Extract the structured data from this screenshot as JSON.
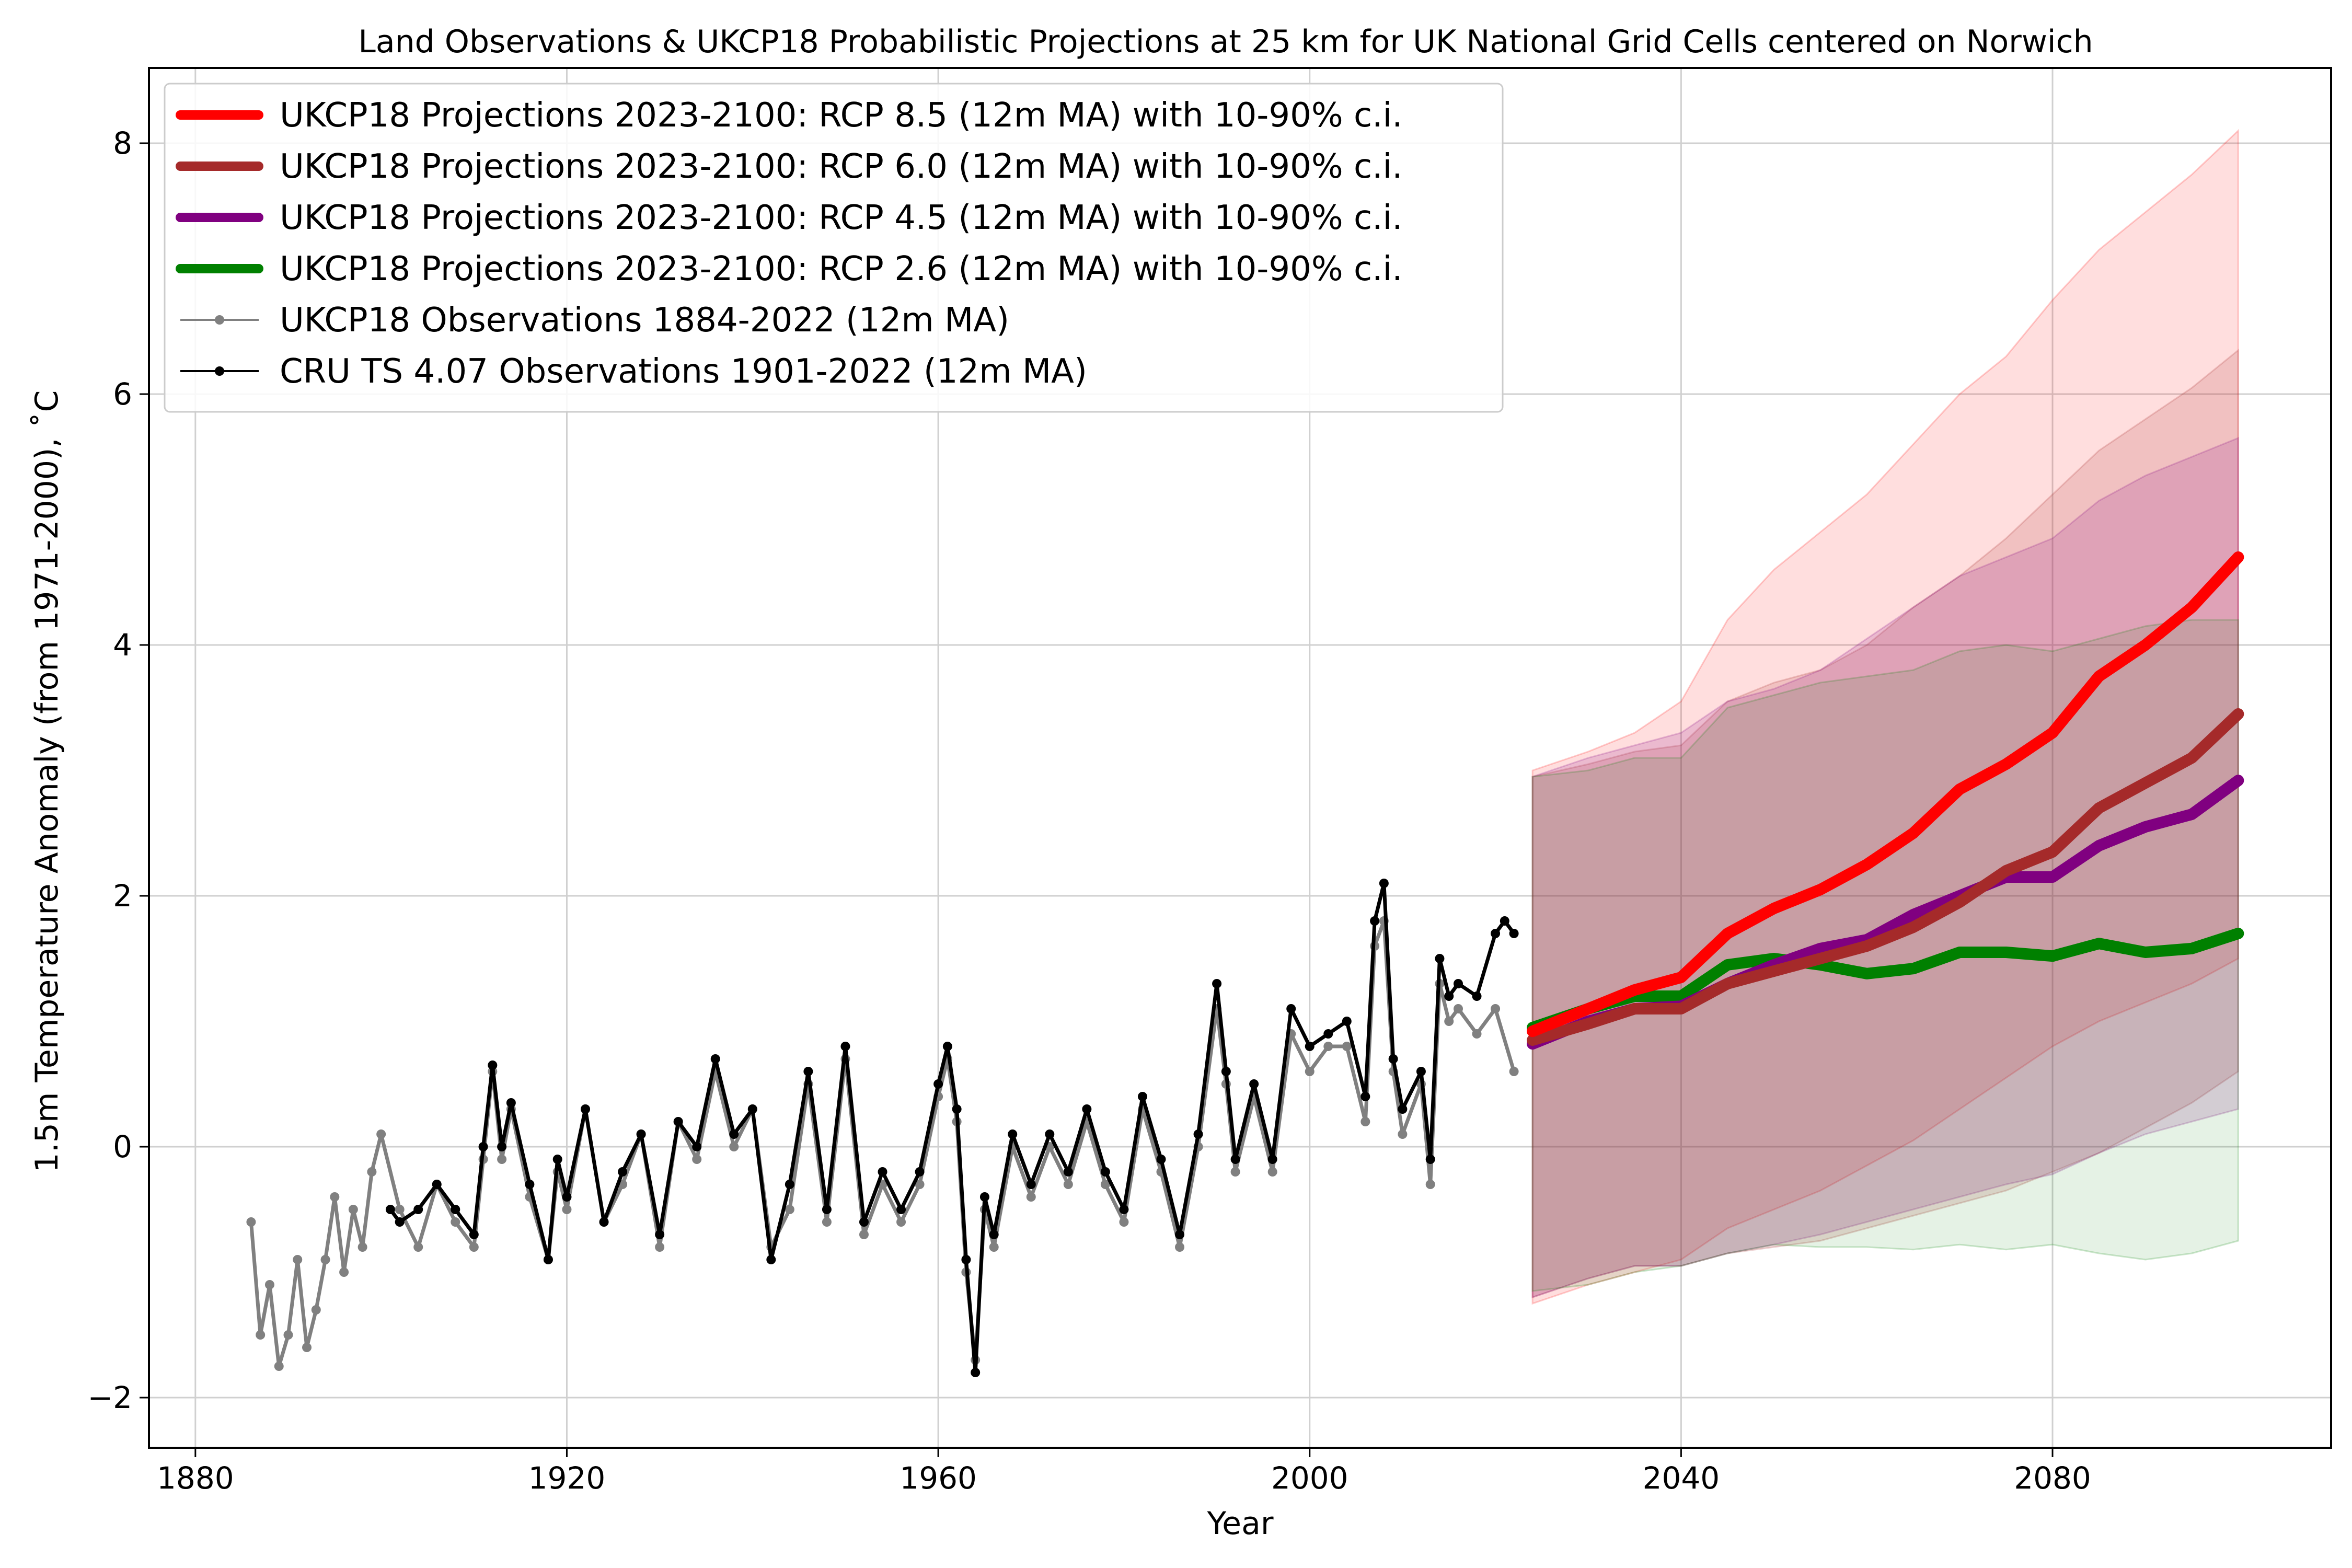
{
  "chart_data": {
    "type": "line",
    "title": "Land Observations & UKCP18 Probabilistic Projections at 25 km for UK National Grid Cells centered on Norwich",
    "xlabel": "Year",
    "ylabel": "1.5m Temperature Anomaly (from 1971-2000), ˚C",
    "xlim": [
      1875,
      2110
    ],
    "ylim": [
      -2.4,
      8.6
    ],
    "x_ticks": [
      1880,
      1920,
      1960,
      2000,
      2040,
      2080
    ],
    "x_tick_labels": [
      "1880",
      "1920",
      "1960",
      "2000",
      "2040",
      "2080"
    ],
    "y_ticks": [
      -2,
      0,
      2,
      4,
      6,
      8
    ],
    "y_tick_labels": [
      "−2",
      "0",
      "2",
      "4",
      "6",
      "8"
    ],
    "grid": true,
    "legend_position": "top-left",
    "series": [
      {
        "name": "UKCP18 Projections 2023-2100: RCP 8.5 (12m MA) with 10-90% c.i.",
        "color": "#ff0000",
        "kind": "projection",
        "x": [
          2024,
          2030,
          2035,
          2040,
          2045,
          2050,
          2055,
          2060,
          2065,
          2070,
          2075,
          2080,
          2085,
          2090,
          2095,
          2100
        ],
        "y": [
          0.92,
          1.1,
          1.25,
          1.35,
          1.7,
          1.9,
          2.05,
          2.25,
          2.5,
          2.85,
          3.05,
          3.3,
          3.75,
          4.0,
          4.3,
          4.7
        ],
        "upper": [
          3.0,
          3.15,
          3.3,
          3.55,
          4.2,
          4.6,
          4.9,
          5.2,
          5.6,
          6.0,
          6.3,
          6.75,
          7.15,
          7.45,
          7.75,
          8.1
        ],
        "lower": [
          -1.25,
          -1.1,
          -1.0,
          -0.9,
          -0.65,
          -0.5,
          -0.35,
          -0.15,
          0.05,
          0.3,
          0.55,
          0.8,
          1.0,
          1.15,
          1.3,
          1.5
        ]
      },
      {
        "name": "UKCP18 Projections 2023-2100: RCP 6.0 (12m MA) with 10-90% c.i.",
        "color": "#a52a2a",
        "kind": "projection",
        "x": [
          2024,
          2030,
          2035,
          2040,
          2045,
          2050,
          2055,
          2060,
          2065,
          2070,
          2075,
          2080,
          2085,
          2090,
          2095,
          2100
        ],
        "y": [
          0.85,
          0.98,
          1.1,
          1.1,
          1.3,
          1.4,
          1.5,
          1.6,
          1.75,
          1.95,
          2.2,
          2.35,
          2.7,
          2.9,
          3.1,
          3.45
        ],
        "upper": [
          2.95,
          3.05,
          3.15,
          3.2,
          3.55,
          3.7,
          3.8,
          4.0,
          4.3,
          4.55,
          4.85,
          5.2,
          5.55,
          5.8,
          6.05,
          6.35
        ],
        "lower": [
          -1.2,
          -1.05,
          -0.95,
          -0.95,
          -0.85,
          -0.8,
          -0.75,
          -0.65,
          -0.55,
          -0.45,
          -0.35,
          -0.2,
          -0.05,
          0.15,
          0.35,
          0.6
        ]
      },
      {
        "name": "UKCP18 Projections 2023-2100: RCP 4.5 (12m MA) with 10-90% c.i.",
        "color": "#800080",
        "kind": "projection",
        "x": [
          2024,
          2030,
          2035,
          2040,
          2045,
          2050,
          2055,
          2060,
          2065,
          2070,
          2075,
          2080,
          2085,
          2090,
          2095,
          2100
        ],
        "y": [
          0.82,
          1.0,
          1.1,
          1.12,
          1.3,
          1.45,
          1.58,
          1.65,
          1.85,
          2.0,
          2.15,
          2.15,
          2.4,
          2.55,
          2.65,
          2.92
        ],
        "upper": [
          2.95,
          3.1,
          3.2,
          3.3,
          3.55,
          3.65,
          3.8,
          4.05,
          4.3,
          4.55,
          4.7,
          4.85,
          5.15,
          5.35,
          5.5,
          5.65
        ],
        "lower": [
          -1.2,
          -1.05,
          -0.95,
          -0.95,
          -0.85,
          -0.78,
          -0.7,
          -0.6,
          -0.5,
          -0.4,
          -0.3,
          -0.22,
          -0.05,
          0.1,
          0.2,
          0.3
        ]
      },
      {
        "name": "UKCP18 Projections 2023-2100: RCP 2.6 (12m MA) with 10-90% c.i.",
        "color": "#008000",
        "kind": "projection",
        "x": [
          2024,
          2030,
          2035,
          2040,
          2045,
          2050,
          2055,
          2060,
          2065,
          2070,
          2075,
          2080,
          2085,
          2090,
          2095,
          2100
        ],
        "y": [
          0.95,
          1.1,
          1.2,
          1.2,
          1.45,
          1.5,
          1.45,
          1.38,
          1.42,
          1.55,
          1.55,
          1.52,
          1.62,
          1.55,
          1.58,
          1.7
        ],
        "upper": [
          2.95,
          3.0,
          3.1,
          3.1,
          3.5,
          3.6,
          3.7,
          3.75,
          3.8,
          3.95,
          4.0,
          3.95,
          4.05,
          4.15,
          4.2,
          4.2
        ],
        "lower": [
          -1.15,
          -1.1,
          -1.0,
          -0.95,
          -0.85,
          -0.78,
          -0.8,
          -0.8,
          -0.82,
          -0.78,
          -0.82,
          -0.78,
          -0.85,
          -0.9,
          -0.85,
          -0.75
        ]
      },
      {
        "name": "UKCP18 Observations 1884-2022 (12m MA)",
        "color": "#808080",
        "kind": "observation",
        "x": [
          1886,
          1887,
          1888,
          1889,
          1890,
          1891,
          1892,
          1893,
          1894,
          1895,
          1896,
          1897,
          1898,
          1899,
          1900,
          1902,
          1904,
          1906,
          1908,
          1910,
          1911,
          1912,
          1913,
          1914,
          1916,
          1918,
          1919,
          1920,
          1922,
          1924,
          1926,
          1928,
          1930,
          1932,
          1934,
          1936,
          1938,
          1940,
          1942,
          1944,
          1946,
          1948,
          1950,
          1952,
          1954,
          1956,
          1958,
          1960,
          1961,
          1962,
          1963,
          1964,
          1965,
          1966,
          1968,
          1970,
          1972,
          1974,
          1976,
          1978,
          1980,
          1982,
          1984,
          1986,
          1988,
          1990,
          1991,
          1992,
          1994,
          1996,
          1998,
          2000,
          2002,
          2004,
          2006,
          2007,
          2008,
          2009,
          2010,
          2012,
          2013,
          2014,
          2015,
          2016,
          2018,
          2020,
          2022
        ],
        "y": [
          -0.6,
          -1.5,
          -1.1,
          -1.75,
          -1.5,
          -0.9,
          -1.6,
          -1.3,
          -0.9,
          -0.4,
          -1.0,
          -0.5,
          -0.8,
          -0.2,
          0.1,
          -0.5,
          -0.8,
          -0.3,
          -0.6,
          -0.8,
          -0.1,
          0.6,
          -0.1,
          0.3,
          -0.4,
          -0.9,
          -0.2,
          -0.5,
          0.3,
          -0.6,
          -0.3,
          0.1,
          -0.8,
          0.2,
          -0.1,
          0.6,
          0.0,
          0.3,
          -0.8,
          -0.5,
          0.5,
          -0.6,
          0.7,
          -0.7,
          -0.3,
          -0.6,
          -0.3,
          0.4,
          0.7,
          0.2,
          -1.0,
          -1.7,
          -0.5,
          -0.8,
          0.0,
          -0.4,
          0.0,
          -0.3,
          0.2,
          -0.3,
          -0.6,
          0.3,
          -0.2,
          -0.8,
          0.0,
          1.1,
          0.5,
          -0.2,
          0.4,
          -0.2,
          0.9,
          0.6,
          0.8,
          0.8,
          0.2,
          1.6,
          1.8,
          0.6,
          0.1,
          0.5,
          -0.3,
          1.3,
          1.0,
          1.1,
          0.9,
          1.1,
          0.6
        ]
      },
      {
        "name": "CRU TS 4.07 Observations 1901-2022 (12m MA)",
        "color": "#000000",
        "kind": "observation",
        "x": [
          1901,
          1902,
          1904,
          1906,
          1908,
          1910,
          1911,
          1912,
          1913,
          1914,
          1916,
          1918,
          1919,
          1920,
          1922,
          1924,
          1926,
          1928,
          1930,
          1932,
          1934,
          1936,
          1938,
          1940,
          1942,
          1944,
          1946,
          1948,
          1950,
          1952,
          1954,
          1956,
          1958,
          1960,
          1961,
          1962,
          1963,
          1964,
          1965,
          1966,
          1968,
          1970,
          1972,
          1974,
          1976,
          1978,
          1980,
          1982,
          1984,
          1986,
          1988,
          1990,
          1991,
          1992,
          1994,
          1996,
          1998,
          2000,
          2002,
          2004,
          2006,
          2007,
          2008,
          2009,
          2010,
          2012,
          2013,
          2014,
          2015,
          2016,
          2018,
          2020,
          2021,
          2022
        ],
        "y": [
          -0.5,
          -0.6,
          -0.5,
          -0.3,
          -0.5,
          -0.7,
          0.0,
          0.65,
          0.0,
          0.35,
          -0.3,
          -0.9,
          -0.1,
          -0.4,
          0.3,
          -0.6,
          -0.2,
          0.1,
          -0.7,
          0.2,
          0.0,
          0.7,
          0.1,
          0.3,
          -0.9,
          -0.3,
          0.6,
          -0.5,
          0.8,
          -0.6,
          -0.2,
          -0.5,
          -0.2,
          0.5,
          0.8,
          0.3,
          -0.9,
          -1.8,
          -0.4,
          -0.7,
          0.1,
          -0.3,
          0.1,
          -0.2,
          0.3,
          -0.2,
          -0.5,
          0.4,
          -0.1,
          -0.7,
          0.1,
          1.3,
          0.6,
          -0.1,
          0.5,
          -0.1,
          1.1,
          0.8,
          0.9,
          1.0,
          0.4,
          1.8,
          2.1,
          0.7,
          0.3,
          0.6,
          -0.1,
          1.5,
          1.2,
          1.3,
          1.2,
          1.7,
          1.8,
          1.7
        ]
      }
    ]
  }
}
